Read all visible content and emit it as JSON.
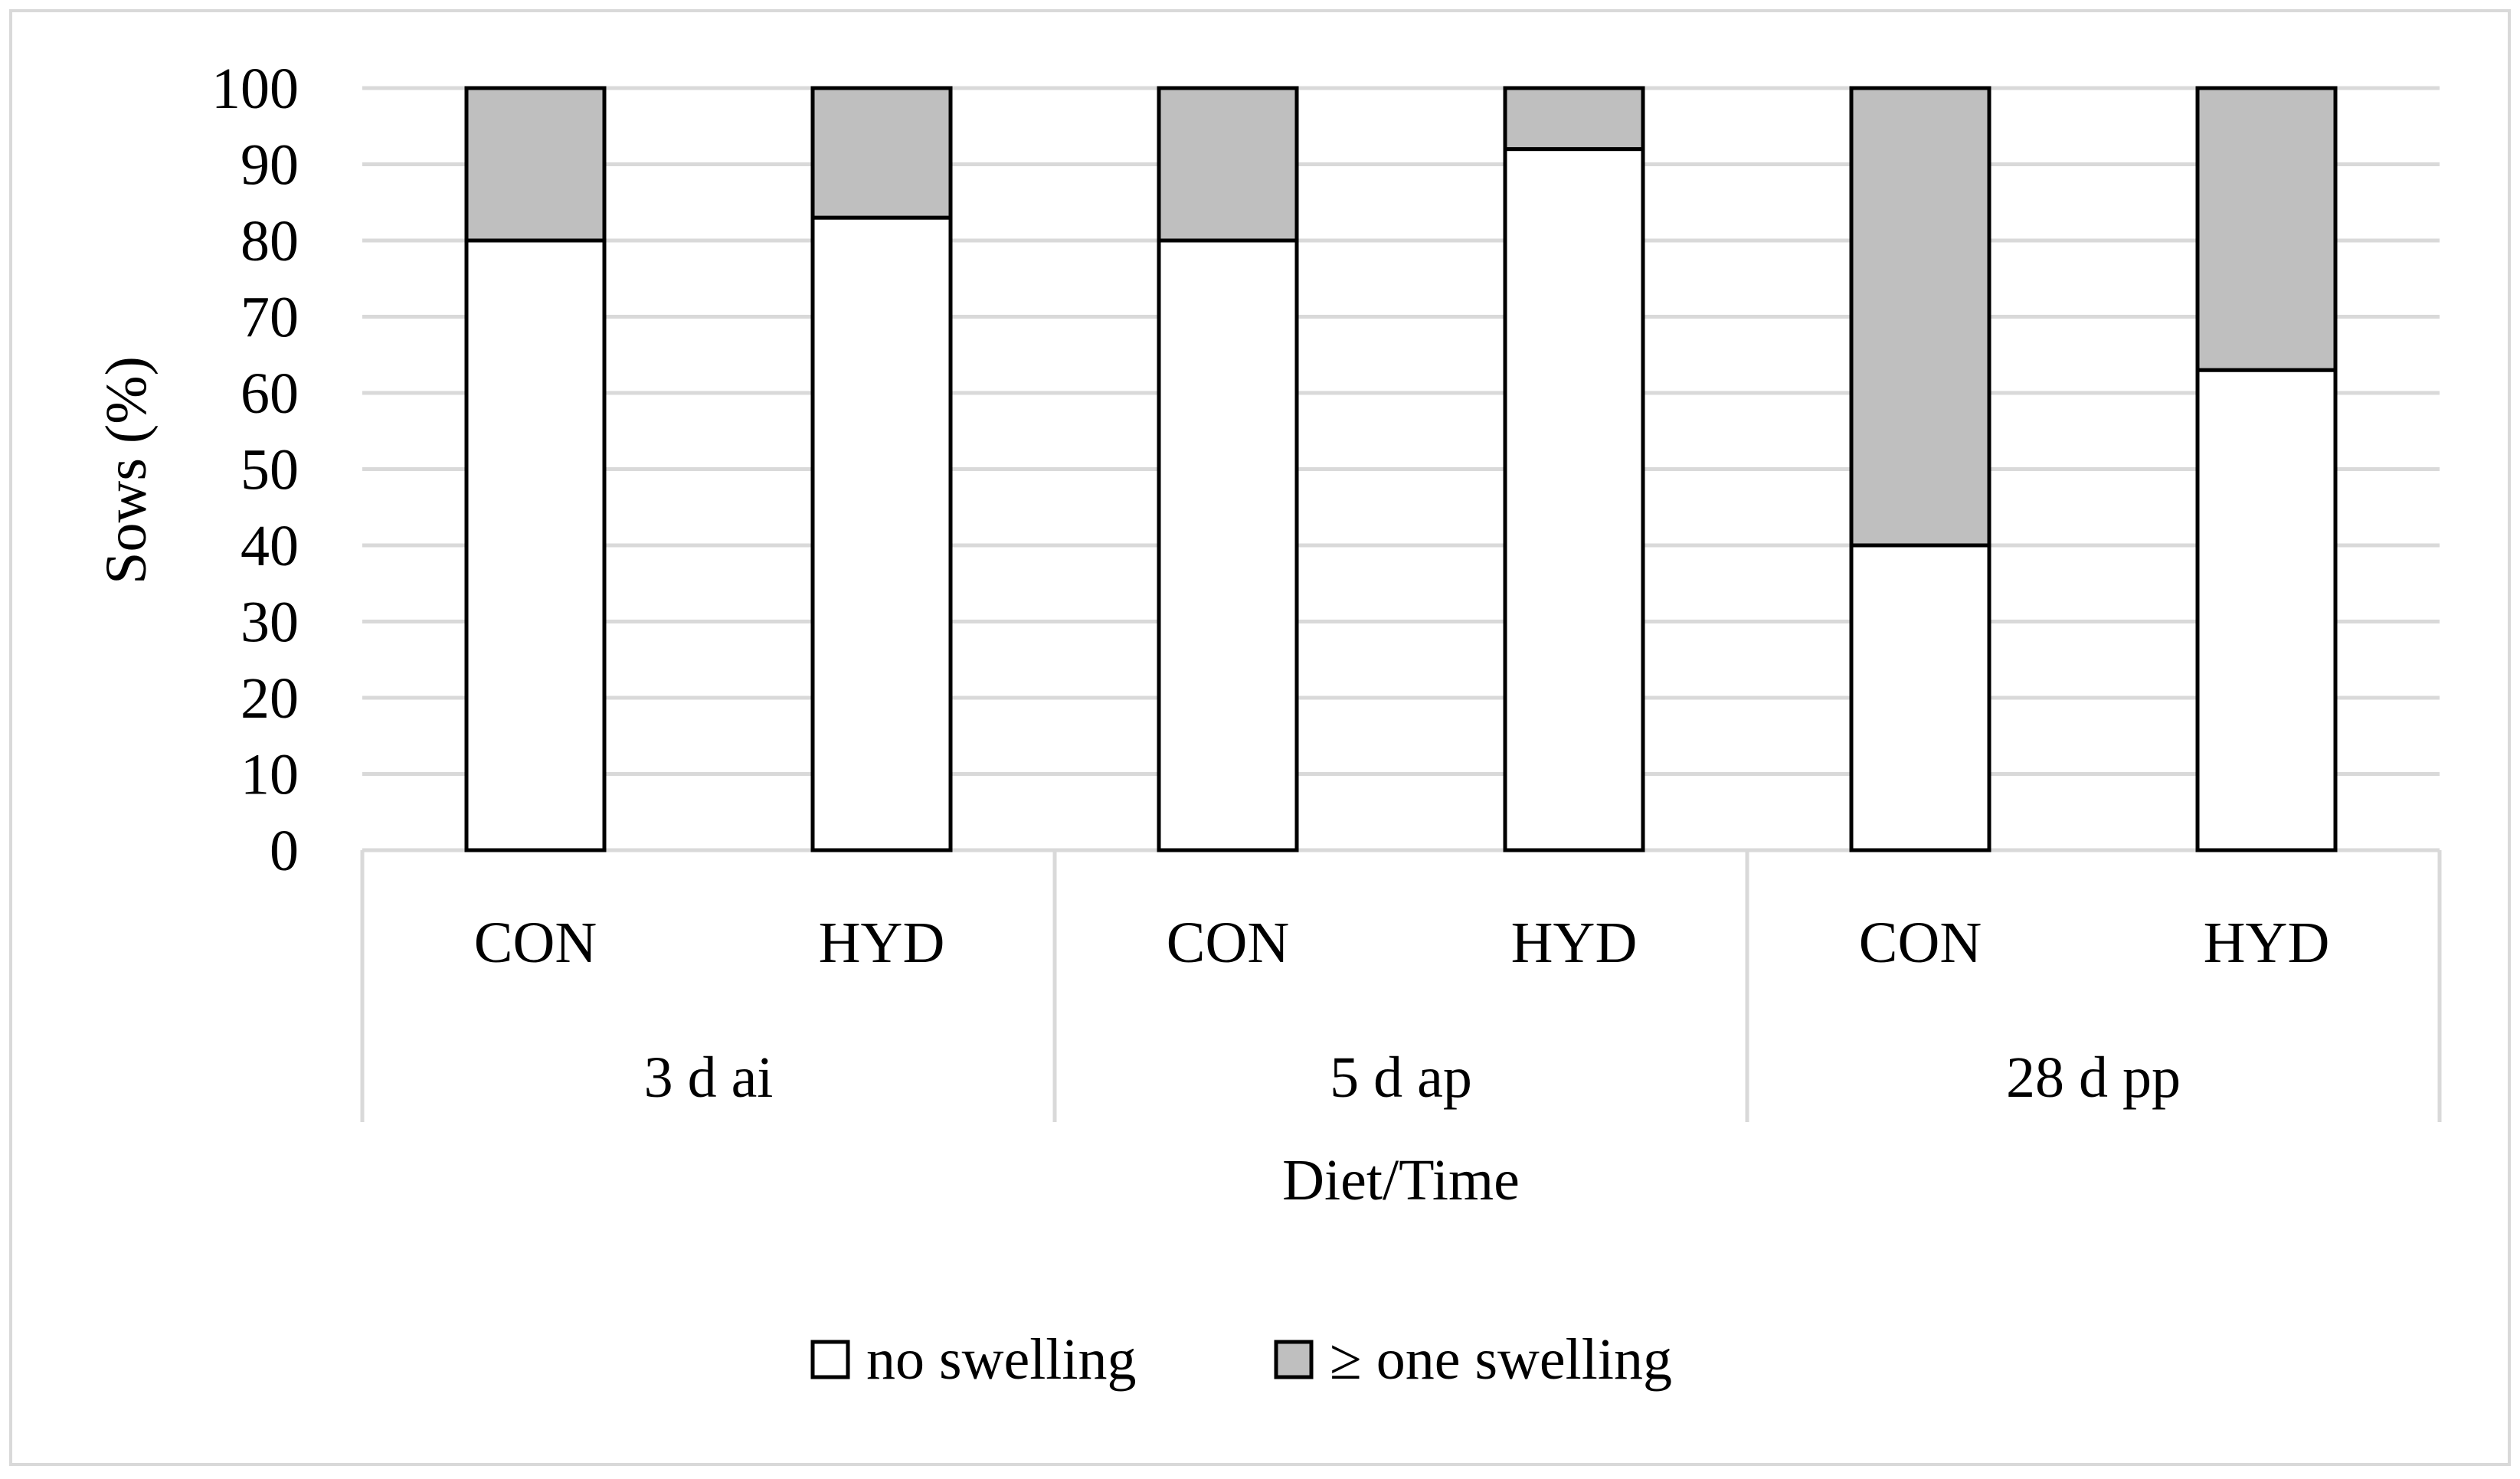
{
  "chart_data": {
    "type": "bar",
    "stacked": true,
    "title": "",
    "xlabel": "Diet/Time",
    "ylabel": "Sows (%)",
    "ylim": [
      0,
      100
    ],
    "yticks": [
      0,
      10,
      20,
      30,
      40,
      50,
      60,
      70,
      80,
      90,
      100
    ],
    "grid": true,
    "legend_position": "bottom",
    "groups": [
      {
        "label": "3 d ai",
        "categories": [
          "CON",
          "HYD"
        ]
      },
      {
        "label": "5 d ap",
        "categories": [
          "CON",
          "HYD"
        ]
      },
      {
        "label": "28 d pp",
        "categories": [
          "CON",
          "HYD"
        ]
      }
    ],
    "categories": [
      "CON",
      "HYD",
      "CON",
      "HYD",
      "CON",
      "HYD"
    ],
    "series": [
      {
        "name": "no swelling",
        "color": "#ffffff",
        "values": [
          80,
          83,
          80,
          92,
          40,
          63
        ]
      },
      {
        "name": "≥ one swelling",
        "color": "#bfbfbf",
        "values": [
          20,
          17,
          20,
          8,
          60,
          37
        ]
      }
    ]
  }
}
